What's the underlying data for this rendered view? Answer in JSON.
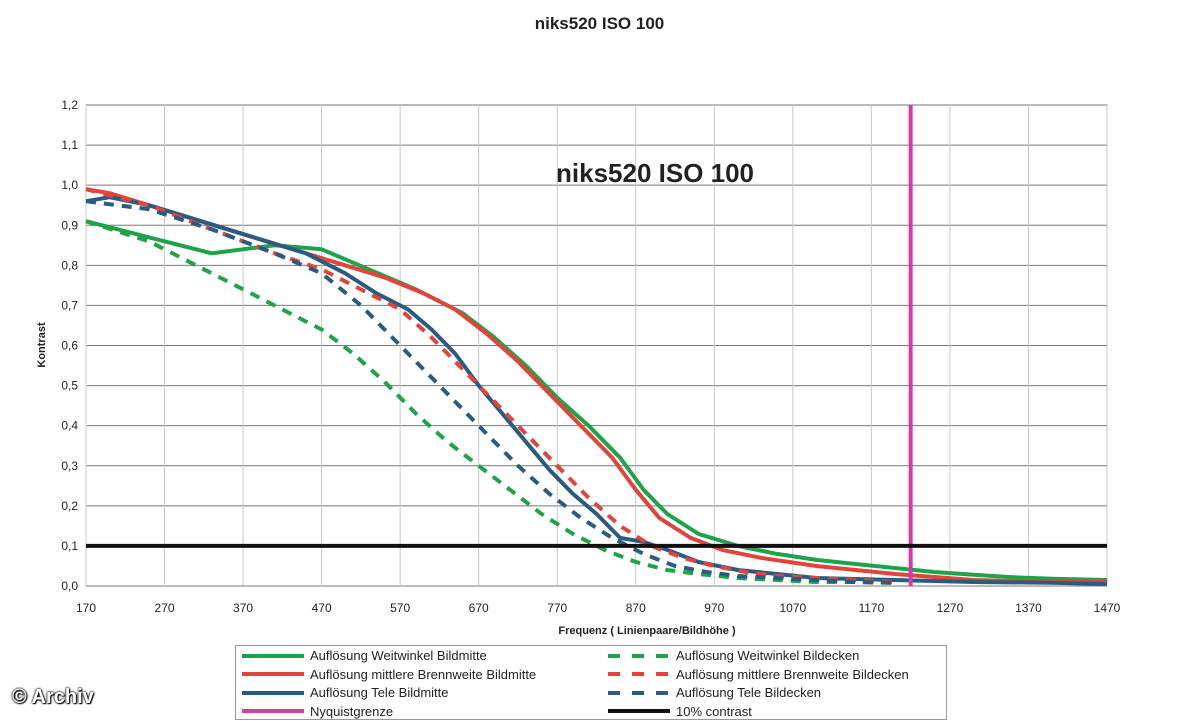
{
  "chart_data": {
    "type": "line",
    "title": "niks520 ISO 100",
    "subtitle": "niks520 ISO 100",
    "xlabel": "Frequenz ( Linienpaare/Bildhöhe )",
    "ylabel": "Kontrast",
    "xlim": [
      170,
      1470
    ],
    "ylim": [
      0,
      1.2
    ],
    "x_ticks": [
      "170",
      "270",
      "370",
      "470",
      "570",
      "670",
      "770",
      "870",
      "970",
      "1070",
      "1170",
      "1270",
      "1370",
      "1470"
    ],
    "y_ticks": [
      "0,0",
      "0,1",
      "0,2",
      "0,3",
      "0,4",
      "0,5",
      "0,6",
      "0,7",
      "0,8",
      "0,9",
      "1,0",
      "1,1",
      "1,2"
    ],
    "grid": "horizontal",
    "legend_position": "bottom",
    "series": [
      {
        "name": "Auflösung Weitwinkel Bildmitte",
        "color": "#1fa34a",
        "dash": false,
        "x": [
          170,
          250,
          330,
          410,
          470,
          530,
          590,
          650,
          690,
          730,
          770,
          810,
          850,
          880,
          910,
          950,
          1000,
          1050,
          1100,
          1150,
          1200,
          1250,
          1300,
          1350,
          1400,
          1470
        ],
        "y": [
          0.91,
          0.87,
          0.83,
          0.85,
          0.84,
          0.79,
          0.74,
          0.68,
          0.62,
          0.55,
          0.47,
          0.4,
          0.32,
          0.24,
          0.18,
          0.13,
          0.1,
          0.08,
          0.065,
          0.055,
          0.045,
          0.035,
          0.028,
          0.022,
          0.018,
          0.015
        ]
      },
      {
        "name": "Auflösung mittlere Brennweite Bildmitte",
        "color": "#e0443a",
        "dash": false,
        "x": [
          170,
          200,
          250,
          300,
          350,
          400,
          450,
          500,
          550,
          600,
          640,
          680,
          720,
          760,
          800,
          840,
          870,
          900,
          940,
          980,
          1030,
          1100,
          1200,
          1300,
          1400,
          1470
        ],
        "y": [
          0.99,
          0.98,
          0.95,
          0.92,
          0.89,
          0.86,
          0.83,
          0.8,
          0.77,
          0.73,
          0.69,
          0.63,
          0.56,
          0.48,
          0.4,
          0.32,
          0.24,
          0.17,
          0.12,
          0.09,
          0.07,
          0.05,
          0.03,
          0.015,
          0.01,
          0.01
        ]
      },
      {
        "name": "Auflösung Tele Bildmitte",
        "color": "#2a5b80",
        "dash": false,
        "x": [
          170,
          200,
          250,
          300,
          350,
          400,
          450,
          500,
          540,
          580,
          610,
          640,
          670,
          700,
          730,
          760,
          790,
          820,
          850,
          880,
          910,
          950,
          1000,
          1050,
          1100,
          1200,
          1300,
          1400,
          1470
        ],
        "y": [
          0.96,
          0.97,
          0.95,
          0.92,
          0.89,
          0.86,
          0.83,
          0.78,
          0.73,
          0.69,
          0.64,
          0.58,
          0.5,
          0.43,
          0.36,
          0.29,
          0.23,
          0.18,
          0.12,
          0.11,
          0.09,
          0.06,
          0.04,
          0.03,
          0.02,
          0.015,
          0.01,
          0.008,
          0.005
        ]
      },
      {
        "name": "Auflösung Weitwinkel Bildecken",
        "color": "#1fa34a",
        "dash": true,
        "x": [
          170,
          250,
          330,
          410,
          470,
          510,
          550,
          590,
          630,
          670,
          710,
          750,
          790,
          830,
          870,
          910,
          950,
          1000,
          1050,
          1100,
          1150,
          1200
        ],
        "y": [
          0.91,
          0.86,
          0.78,
          0.7,
          0.64,
          0.58,
          0.51,
          0.43,
          0.36,
          0.3,
          0.24,
          0.18,
          0.13,
          0.09,
          0.06,
          0.04,
          0.03,
          0.02,
          0.015,
          0.01,
          0.01,
          0.008
        ]
      },
      {
        "name": "Auflösung mittlere Brennweite Bildecken",
        "color": "#e0443a",
        "dash": true,
        "x": [
          170,
          250,
          330,
          410,
          470,
          520,
          570,
          610,
          650,
          690,
          730,
          770,
          810,
          850,
          890,
          930,
          970,
          1010,
          1050,
          1100,
          1150,
          1200
        ],
        "y": [
          0.99,
          0.95,
          0.89,
          0.83,
          0.79,
          0.74,
          0.69,
          0.62,
          0.54,
          0.46,
          0.38,
          0.3,
          0.22,
          0.15,
          0.1,
          0.07,
          0.05,
          0.035,
          0.025,
          0.02,
          0.015,
          0.01
        ]
      },
      {
        "name": "Auflösung Tele Bildecken",
        "color": "#2a5b80",
        "dash": true,
        "x": [
          170,
          250,
          330,
          410,
          470,
          520,
          560,
          600,
          640,
          680,
          720,
          760,
          800,
          840,
          880,
          920,
          960,
          1000,
          1050,
          1100,
          1150,
          1200
        ],
        "y": [
          0.96,
          0.94,
          0.89,
          0.83,
          0.78,
          0.7,
          0.62,
          0.54,
          0.46,
          0.38,
          0.3,
          0.23,
          0.17,
          0.12,
          0.08,
          0.05,
          0.035,
          0.025,
          0.02,
          0.015,
          0.01,
          0.008
        ]
      }
    ],
    "reference_lines": [
      {
        "name": "Nyquistgrenze",
        "color": "#d63aa6",
        "orientation": "vertical",
        "value": 1220
      },
      {
        "name": "10% contrast",
        "color": "#111111",
        "orientation": "horizontal",
        "value": 0.1
      }
    ]
  },
  "watermark": "© Archiv"
}
